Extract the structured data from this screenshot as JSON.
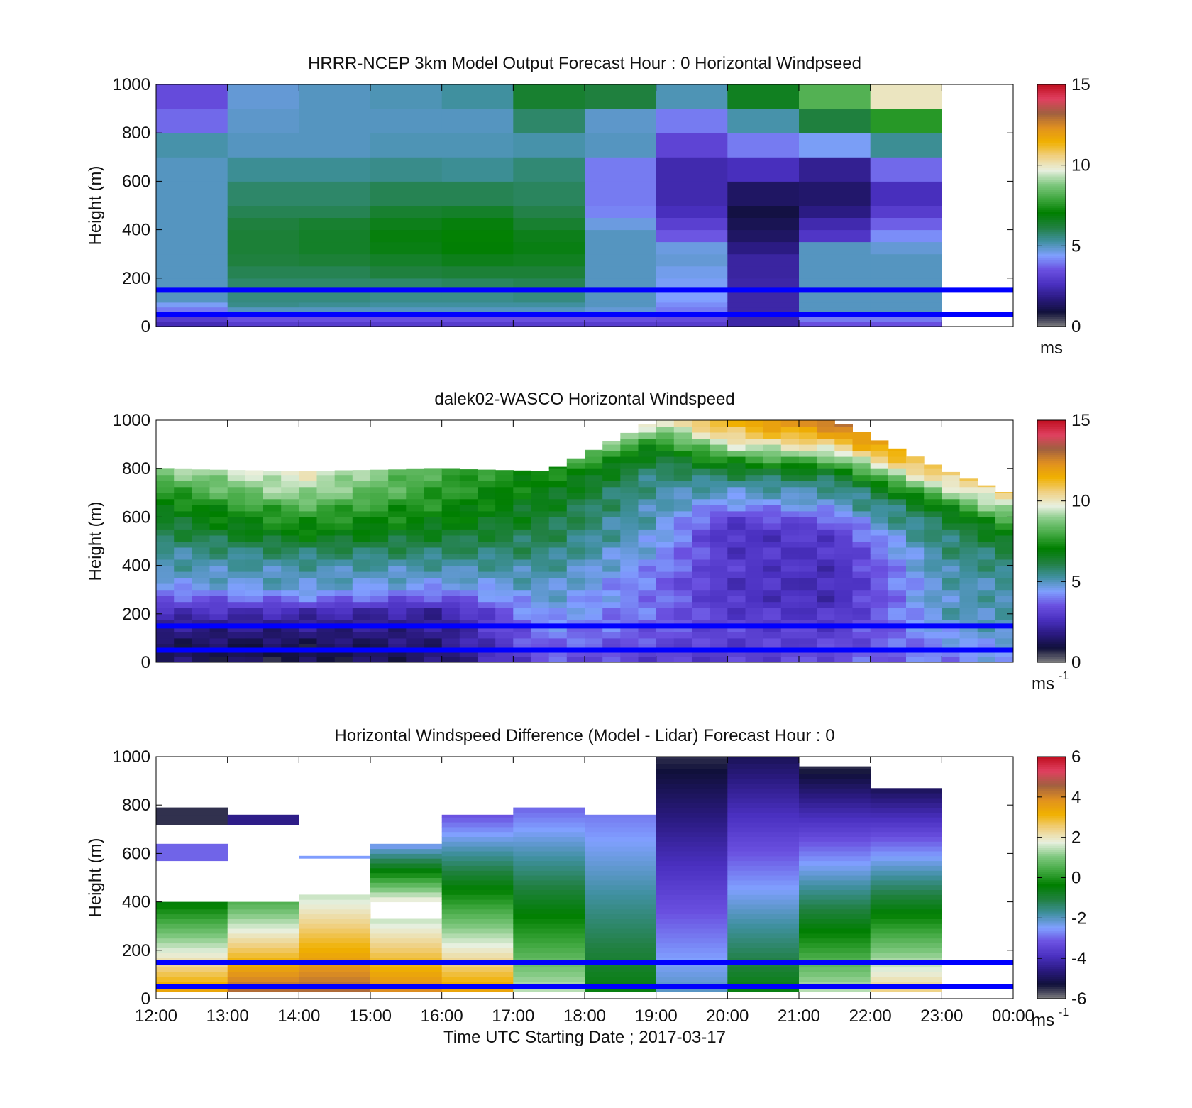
{
  "figure": {
    "x_title": "Time UTC  Starting Date ; 2017-03-17"
  },
  "colors": {
    "reference_lines": "#0000ff",
    "missing": "#808080",
    "colormap": [
      "#808080",
      "#10103a",
      "#2a1a80",
      "#4a30c0",
      "#6a50e0",
      "#80a0ff",
      "#4090a0",
      "#208040",
      "#007f00",
      "#40a840",
      "#80c880",
      "#e8f0e0",
      "#f0d080",
      "#f0b000",
      "#e09020",
      "#a06040",
      "#e04060",
      "#c01020"
    ]
  },
  "chart_data": [
    {
      "type": "heatmap",
      "title": "HRRR-NCEP 3km Model Output   Forecast Hour : 0 Horizontal Windpseed",
      "ylabel": "Height (m)",
      "xlabel": "",
      "ylim": [
        0,
        1000
      ],
      "y_ticks": [
        "0",
        "200",
        "400",
        "600",
        "800",
        "1000"
      ],
      "x_ticks": [
        "12:00",
        "13:00",
        "14:00",
        "15:00",
        "16:00",
        "17:00",
        "18:00",
        "19:00",
        "20:00",
        "21:00",
        "22:00",
        "23:00",
        "00:00"
      ],
      "x_tick_labels_shown": false,
      "x_range_hours": [
        12,
        24
      ],
      "colorbar": {
        "range": [
          0,
          15
        ],
        "ticks": [
          "0",
          "5",
          "10",
          "15"
        ],
        "unit": "ms",
        "unit_sup": ""
      },
      "reference_lines_m": [
        150,
        50
      ],
      "cell_hours": 1,
      "row_heights_m": [
        0,
        20,
        40,
        60,
        80,
        100,
        150,
        200,
        250,
        300,
        350,
        400,
        450,
        500,
        600,
        700,
        800,
        900,
        1000
      ],
      "columns": [
        {
          "t": 12,
          "values": [
            2.5,
            3.0,
            3.5,
            4.0,
            4.5,
            5.0,
            5.0,
            5.0,
            5.0,
            5.0,
            5.0,
            5.0,
            5.0,
            5.0,
            5.0,
            5.2,
            3.8,
            3.4,
            4.2
          ]
        },
        {
          "t": 13,
          "values": [
            3.0,
            3.5,
            4.0,
            5.0,
            5.5,
            5.6,
            5.8,
            6.0,
            6.2,
            6.3,
            6.3,
            6.2,
            6.0,
            5.8,
            5.4,
            5.0,
            4.9,
            4.8
          ]
        },
        {
          "t": 14,
          "values": [
            3.0,
            3.5,
            4.0,
            5.0,
            5.4,
            5.6,
            5.8,
            6.0,
            6.3,
            6.5,
            6.5,
            6.4,
            6.0,
            5.8,
            5.4,
            5.0,
            5.0,
            5.0
          ]
        },
        {
          "t": 15,
          "values": [
            3.0,
            3.5,
            4.0,
            5.0,
            5.3,
            5.5,
            5.8,
            6.2,
            6.5,
            6.8,
            6.9,
            6.7,
            6.4,
            6.0,
            5.5,
            5.1,
            5.0,
            5.1
          ]
        },
        {
          "t": 16,
          "values": [
            3.0,
            3.5,
            4.2,
            5.0,
            5.3,
            5.5,
            5.9,
            6.3,
            6.7,
            7.0,
            7.1,
            6.9,
            6.5,
            6.0,
            5.4,
            5.1,
            5.0,
            5.3
          ]
        },
        {
          "t": 17,
          "values": [
            3.0,
            3.5,
            4.2,
            5.0,
            5.3,
            5.6,
            6.0,
            6.3,
            6.6,
            6.8,
            6.7,
            6.4,
            6.1,
            5.9,
            5.7,
            5.2,
            5.8,
            6.4
          ]
        },
        {
          "t": 18,
          "values": [
            3.0,
            3.5,
            4.0,
            4.8,
            5.0,
            5.0,
            5.0,
            5.0,
            5.0,
            5.0,
            5.0,
            4.7,
            4.1,
            4.0,
            4.0,
            5.0,
            4.9,
            6.2
          ]
        },
        {
          "t": 19,
          "values": [
            3.0,
            3.4,
            3.6,
            4.0,
            4.2,
            4.4,
            4.5,
            4.6,
            4.8,
            4.7,
            3.6,
            3.1,
            2.6,
            2.4,
            2.4,
            3.2,
            4.0,
            5.1
          ]
        },
        {
          "t": 20,
          "values": [
            2.3,
            2.3,
            2.3,
            2.3,
            2.3,
            2.3,
            2.3,
            2.2,
            2.2,
            1.8,
            1.4,
            1.2,
            1.0,
            1.4,
            2.6,
            4.0,
            5.2,
            6.6
          ]
        },
        {
          "t": 21,
          "values": [
            3.5,
            4.0,
            5.0,
            5.0,
            5.0,
            5.0,
            5.0,
            5.0,
            5.0,
            5.0,
            2.8,
            2.4,
            1.8,
            1.5,
            2.0,
            4.5,
            6.2,
            8.2
          ]
        },
        {
          "t": 22,
          "values": [
            3.5,
            4.0,
            4.5,
            5.0,
            5.0,
            5.0,
            5.0,
            5.0,
            5.0,
            4.8,
            4.2,
            3.7,
            3.0,
            2.6,
            3.8,
            5.4,
            7.6,
            10.0
          ]
        }
      ]
    },
    {
      "type": "heatmap",
      "title": "dalek02-WASCO  Horizontal Windspeed",
      "ylabel": "Height (m)",
      "xlabel": "",
      "ylim": [
        0,
        1000
      ],
      "y_ticks": [
        "0",
        "200",
        "400",
        "600",
        "800",
        "1000"
      ],
      "x_ticks": [
        "12:00",
        "13:00",
        "14:00",
        "15:00",
        "16:00",
        "17:00",
        "18:00",
        "19:00",
        "20:00",
        "21:00",
        "22:00",
        "23:00",
        "00:00"
      ],
      "x_tick_labels_shown": false,
      "x_range_hours": [
        12,
        24
      ],
      "colorbar": {
        "range": [
          0,
          15
        ],
        "ticks": [
          "0",
          "5",
          "10",
          "15"
        ],
        "unit": "ms",
        "unit_sup": "-1"
      },
      "reference_lines_m": [
        150,
        50
      ],
      "cell_hours": 0.25,
      "row_height_m": 25,
      "profile_keyframes": [
        {
          "t": 12.0,
          "top": 800,
          "values": [
            1.5,
            1.2,
            1.6,
            2.0,
            2.8,
            3.5,
            4.5,
            5.0,
            5.2,
            5.5,
            6.0,
            6.4,
            6.8,
            7.4,
            8.0,
            9.0
          ]
        },
        {
          "t": 14.0,
          "top": 790,
          "values": [
            1.0,
            1.0,
            1.5,
            2.0,
            2.5,
            4.0,
            5.0,
            5.0,
            5.5,
            6.0,
            7.0,
            7.5,
            8.0,
            9.0,
            9.5,
            10.0
          ]
        },
        {
          "t": 16.0,
          "top": 800,
          "values": [
            1.5,
            1.6,
            1.8,
            2.0,
            2.2,
            3.5,
            4.5,
            5.0,
            5.5,
            6.0,
            6.5,
            7.0,
            7.3,
            7.6,
            7.8,
            8.0
          ]
        },
        {
          "t": 17.5,
          "top": 790,
          "values": [
            3.5,
            3.8,
            4.0,
            4.3,
            4.6,
            4.8,
            5.0,
            5.2,
            5.5,
            5.8,
            6.0,
            6.3,
            6.5,
            6.7,
            7.0,
            7.2
          ]
        },
        {
          "t": 19.0,
          "top": 1000,
          "values": [
            3.0,
            3.3,
            3.6,
            3.8,
            4.0,
            3.8,
            4.2,
            4.5,
            4.8,
            5.0,
            5.2,
            5.4,
            5.8,
            6.5,
            8.0,
            10.0
          ]
        },
        {
          "t": 20.0,
          "top": 1000,
          "values": [
            3.0,
            3.0,
            3.2,
            3.0,
            2.8,
            2.8,
            3.0,
            2.8,
            2.6,
            3.2,
            4.5,
            5.2,
            6.5,
            8.5,
            10.5,
            11.5
          ]
        },
        {
          "t": 21.5,
          "top": 1000,
          "values": [
            3.5,
            3.2,
            3.0,
            2.8,
            2.5,
            2.5,
            2.6,
            2.8,
            3.0,
            3.8,
            5.0,
            5.5,
            7.0,
            9.5,
            11.5,
            13.0
          ]
        },
        {
          "t": 23.0,
          "top": 800,
          "values": [
            4.0,
            4.2,
            4.4,
            4.8,
            5.0,
            5.0,
            5.0,
            5.2,
            5.4,
            5.6,
            5.8,
            6.0,
            7.0,
            8.5,
            10.0,
            11.0
          ]
        },
        {
          "t": 24.0,
          "top": 690,
          "values": [
            4.5,
            4.6,
            4.8,
            5.0,
            5.2,
            5.2,
            5.2,
            5.3,
            5.5,
            5.8,
            6.2,
            6.8,
            7.5,
            8.5,
            9.5,
            10.5
          ]
        }
      ]
    },
    {
      "type": "heatmap",
      "title": "Horizontal Windspeed Difference (Model - Lidar) Forecast Hour : 0",
      "ylabel": "Height (m)",
      "xlabel": "Time UTC  Starting Date ; 2017-03-17",
      "ylim": [
        0,
        1000
      ],
      "y_ticks": [
        "0",
        "200",
        "400",
        "600",
        "800",
        "1000"
      ],
      "x_ticks": [
        "12:00",
        "13:00",
        "14:00",
        "15:00",
        "16:00",
        "17:00",
        "18:00",
        "19:00",
        "20:00",
        "21:00",
        "22:00",
        "23:00",
        "00:00"
      ],
      "x_tick_labels_shown": true,
      "x_range_hours": [
        12,
        24
      ],
      "colorbar": {
        "range": [
          -6,
          6
        ],
        "ticks": [
          "-6",
          "-4",
          "-2",
          "0",
          "2",
          "4",
          "6"
        ],
        "unit": "ms",
        "unit_sup": "-1"
      },
      "reference_lines_m": [
        150,
        50
      ],
      "cell_hours": 1,
      "segments": [
        {
          "t": 12,
          "y0": 30,
          "y1": 400,
          "v0": 3.5,
          "v1": -0.5
        },
        {
          "t": 12,
          "y0": 570,
          "y1": 640,
          "v0": -3.0,
          "v1": -3.0
        },
        {
          "t": 12,
          "y0": 720,
          "y1": 790,
          "v0": -5.5,
          "v1": -5.5
        },
        {
          "t": 13,
          "y0": 30,
          "y1": 400,
          "v0": 4.5,
          "v1": 0.5
        },
        {
          "t": 13,
          "y0": 720,
          "y1": 760,
          "v0": -4.5,
          "v1": -4.5
        },
        {
          "t": 14,
          "y0": 30,
          "y1": 430,
          "v0": 4.5,
          "v1": 1.5
        },
        {
          "t": 14,
          "y0": 580,
          "y1": 590,
          "v0": -2.5,
          "v1": -2.5
        },
        {
          "t": 15,
          "y0": 30,
          "y1": 330,
          "v0": 4.0,
          "v1": 1.5
        },
        {
          "t": 15,
          "y0": 400,
          "y1": 640,
          "v0": 2.0,
          "v1": -2.5
        },
        {
          "t": 16,
          "y0": 30,
          "y1": 760,
          "v0": 3.5,
          "v1": -3.2
        },
        {
          "t": 17,
          "y0": 30,
          "y1": 790,
          "v0": 1.5,
          "v1": -3.0
        },
        {
          "t": 18,
          "y0": 30,
          "y1": 760,
          "v0": -0.5,
          "v1": -2.8
        },
        {
          "t": 19,
          "y0": 30,
          "y1": 1000,
          "v0": -2.0,
          "v1": -5.5
        },
        {
          "t": 20,
          "y0": 30,
          "y1": 1000,
          "v0": -0.5,
          "v1": -5.0
        },
        {
          "t": 21,
          "y0": 30,
          "y1": 960,
          "v0": 1.5,
          "v1": -5.5
        },
        {
          "t": 22,
          "y0": 30,
          "y1": 870,
          "v0": 2.5,
          "v1": -5.0
        }
      ]
    }
  ]
}
